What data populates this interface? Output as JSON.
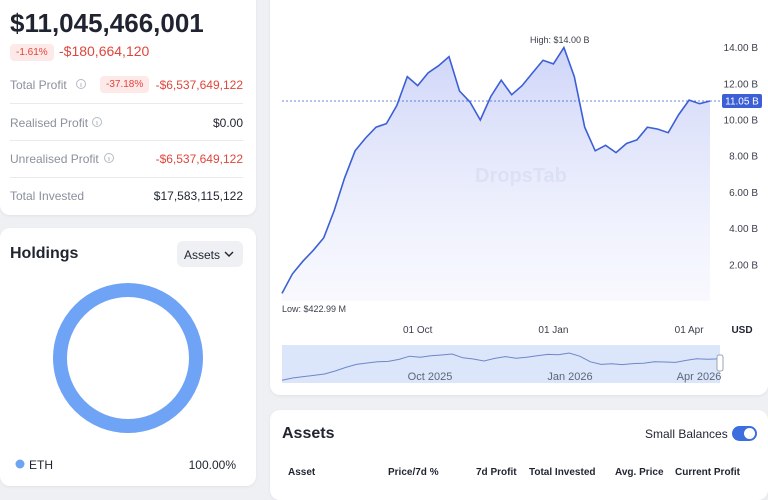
{
  "portfolio": {
    "value": "$11,045,466,001",
    "change_pct": "-1.61%",
    "change": "-$180,664,120"
  },
  "stats": [
    {
      "label": "Total Profit",
      "pct": "-37.18%",
      "value": "-$6,537,649,122"
    },
    {
      "label": "Realised Profit",
      "value": "$0.00"
    },
    {
      "label": "Unrealised Profit",
      "value": "-$6,537,649,122"
    },
    {
      "label": "Total Invested",
      "value": "$17,583,115,122"
    }
  ],
  "holdings": {
    "title": "Holdings",
    "selector": "Assets",
    "items": [
      {
        "name": "ETH",
        "value": 100,
        "value_label": "100.00%",
        "color": "#6fa3f5"
      }
    ]
  },
  "chart_data": {
    "type": "line",
    "color": "#3d5fd6",
    "categories": [
      null,
      null,
      null,
      null,
      null,
      null,
      null,
      null,
      null,
      null,
      null,
      null,
      null,
      "01 Oct",
      null,
      null,
      null,
      null,
      null,
      null,
      null,
      null,
      null,
      null,
      null,
      null,
      "01 Jan",
      null,
      null,
      null,
      null,
      null,
      null,
      null,
      null,
      null,
      null,
      null,
      null,
      "01 Apr",
      null,
      null
    ],
    "values": [
      0.42,
      1.5,
      2.2,
      2.8,
      3.5,
      5.0,
      6.8,
      8.3,
      9.0,
      9.6,
      9.8,
      10.8,
      12.4,
      11.9,
      12.6,
      13.0,
      13.5,
      11.6,
      11.0,
      10.0,
      11.3,
      12.2,
      11.4,
      11.9,
      12.6,
      13.3,
      13.1,
      14.0,
      12.4,
      9.6,
      8.3,
      8.6,
      8.2,
      8.7,
      8.9,
      9.6,
      9.5,
      9.3,
      10.3,
      11.1,
      10.9,
      11.05
    ],
    "ylim": [
      0,
      15
    ],
    "yticks": [
      {
        "value": 2,
        "label": "2.00 B"
      },
      {
        "value": 4,
        "label": "4.00 B"
      },
      {
        "value": 6,
        "label": "6.00 B"
      },
      {
        "value": 8,
        "label": "8.00 B"
      },
      {
        "value": 10,
        "label": "10.00 B"
      },
      {
        "value": 12,
        "label": "12.00 B"
      },
      {
        "value": 14,
        "label": "14.00 B"
      }
    ],
    "high_label": "High: $14.00 B",
    "low_label": "Low: $422.99 M",
    "current": {
      "value": 11.05,
      "label": "11.05 B"
    },
    "unit": "USD",
    "watermark": "DropsTab",
    "navigator_labels": [
      "Oct 2025",
      "Jan 2026",
      "Apr 2026"
    ]
  },
  "assets": {
    "title": "Assets",
    "toggle_label": "Small Balances",
    "columns": [
      "Asset",
      "Price/7d %",
      "7d Profit",
      "Total Invested",
      "Avg. Price",
      "Current Profit"
    ]
  }
}
